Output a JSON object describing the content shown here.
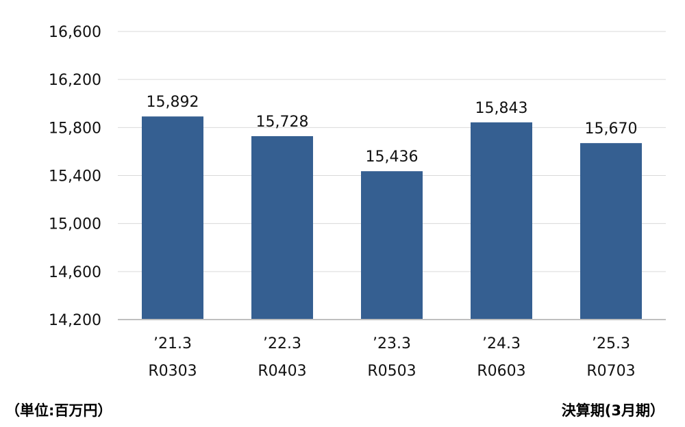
{
  "chart_data": {
    "type": "bar",
    "categories": [
      {
        "line1": "’21.3",
        "line2": "R0303"
      },
      {
        "line1": "’22.3",
        "line2": "R0403"
      },
      {
        "line1": "’23.3",
        "line2": "R0503"
      },
      {
        "line1": "’24.3",
        "line2": "R0603"
      },
      {
        "line1": "’25.3",
        "line2": "R0703"
      }
    ],
    "values": [
      15892,
      15728,
      15436,
      15843,
      15670
    ],
    "value_labels": [
      "15,892",
      "15,728",
      "15,436",
      "15,843",
      "15,670"
    ],
    "ylim": [
      14200,
      16600
    ],
    "yticks": [
      14200,
      14600,
      15000,
      15400,
      15800,
      16200,
      16600
    ],
    "ytick_labels": [
      "14,200",
      "14,600",
      "15,000",
      "15,400",
      "15,800",
      "16,200",
      "16,600"
    ],
    "grid": true,
    "bar_color": "#355F91",
    "grid_color": "#D9D9D9",
    "axis_color": "#BFBFBF"
  },
  "footer": {
    "unit_label": "（単位:百万円）",
    "period_label": "決算期(3月期）"
  }
}
